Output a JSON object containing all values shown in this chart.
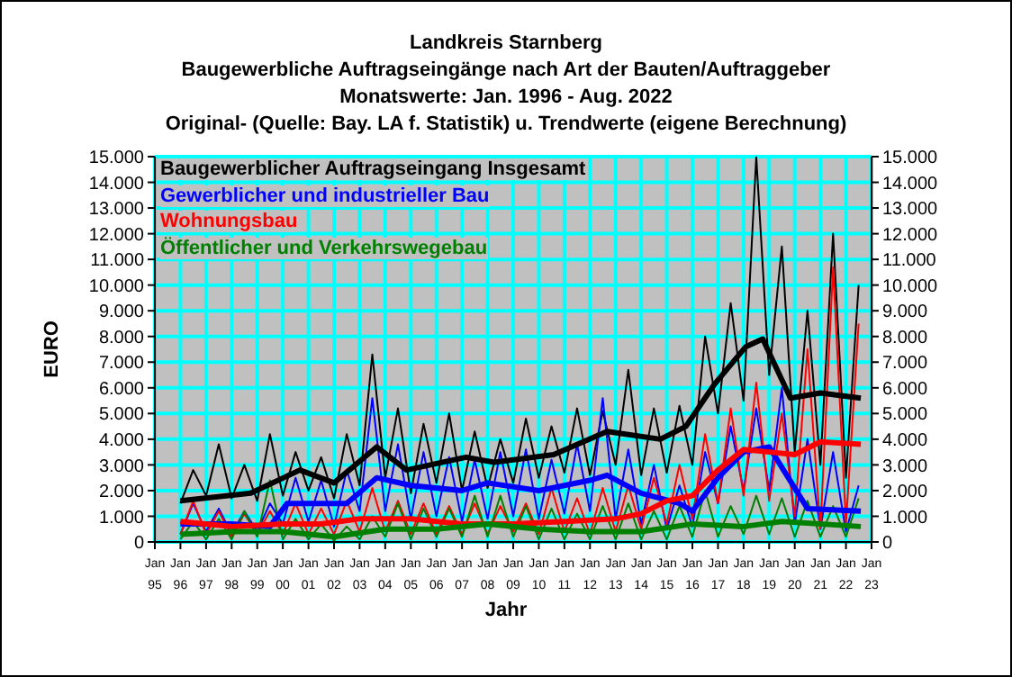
{
  "chart_data": {
    "type": "line",
    "title": "Landkreis Starnberg",
    "subtitle": "Baugewerbliche Auftragseingänge nach Art der Bauten/Auftraggeber\nMonatswerte: Jan. 1996 - Aug. 2022\nOriginal- (Quelle: Bay. LA f. Statistik) u. Trendwerte (eigene Berechnung)",
    "xlabel": "Jahr",
    "ylabel": "EURO",
    "legend": "top left",
    "grid": true,
    "marker": "none",
    "x": [
      "1996-01",
      "1996-07",
      "1997-01",
      "1997-07",
      "1998-01",
      "1998-07",
      "1999-01",
      "1999-07",
      "2000-01",
      "2000-07",
      "2001-01",
      "2001-07",
      "2002-01",
      "2002-07",
      "2003-01",
      "2003-07",
      "2004-01",
      "2004-07",
      "2005-01",
      "2005-07",
      "2006-01",
      "2006-07",
      "2007-01",
      "2007-07",
      "2008-01",
      "2008-07",
      "2009-01",
      "2009-07",
      "2010-01",
      "2010-07",
      "2011-01",
      "2011-07",
      "2012-01",
      "2012-07",
      "2013-01",
      "2013-07",
      "2014-01",
      "2014-07",
      "2015-01",
      "2015-07",
      "2016-01",
      "2016-07",
      "2017-01",
      "2017-07",
      "2018-01",
      "2018-07",
      "2019-01",
      "2019-07",
      "2020-01",
      "2020-07",
      "2021-01",
      "2021-07",
      "2022-01",
      "2022-07"
    ],
    "series": [
      {
        "name": "Baugewerblicher Auftragseingang Insgesamt",
        "color": "#000000",
        "values": [
          1500,
          2800,
          1800,
          3800,
          1700,
          3000,
          1600,
          4200,
          1800,
          3500,
          2000,
          3300,
          1700,
          4200,
          2200,
          7300,
          2500,
          5200,
          1900,
          4600,
          2300,
          5000,
          2000,
          4300,
          2100,
          4000,
          2300,
          4800,
          2500,
          4500,
          2700,
          5200,
          2600,
          5100,
          3000,
          6700,
          2600,
          5200,
          2700,
          5300,
          3000,
          8000,
          5000,
          9300,
          5500,
          15000,
          6500,
          11500,
          3500,
          9000,
          3000,
          12000,
          2500,
          10000
        ]
      },
      {
        "name": "Gewerblicher und industrieller Bau",
        "color": "#0000ff",
        "values": [
          300,
          1500,
          400,
          1300,
          300,
          1200,
          400,
          1500,
          700,
          2500,
          800,
          2400,
          600,
          2800,
          1200,
          5600,
          1200,
          3800,
          900,
          3500,
          1000,
          3300,
          800,
          3200,
          900,
          3500,
          1000,
          3600,
          900,
          3200,
          1100,
          3800,
          1200,
          5600,
          900,
          3600,
          700,
          3000,
          500,
          2200,
          600,
          3500,
          1500,
          4500,
          2000,
          5200,
          2000,
          6000,
          700,
          4000,
          500,
          3500,
          400,
          2200
        ]
      },
      {
        "name": "Wohnungsbau",
        "color": "#ff0000",
        "values": [
          300,
          1600,
          300,
          1200,
          200,
          1100,
          300,
          1200,
          300,
          1500,
          300,
          1300,
          300,
          1600,
          400,
          2100,
          400,
          1600,
          300,
          1500,
          300,
          1400,
          300,
          1500,
          300,
          1400,
          400,
          1500,
          300,
          2100,
          400,
          1700,
          300,
          2100,
          400,
          2200,
          500,
          2500,
          700,
          3000,
          900,
          4200,
          1500,
          5200,
          1800,
          6200,
          1600,
          5000,
          1000,
          7500,
          500,
          10700,
          700,
          8500
        ]
      },
      {
        "name": "Öffentlicher und Verkehrswegebau",
        "color": "#008000",
        "values": [
          100,
          800,
          100,
          900,
          100,
          1200,
          200,
          2400,
          100,
          900,
          100,
          700,
          50,
          600,
          100,
          1000,
          200,
          1500,
          100,
          1300,
          200,
          1300,
          200,
          1800,
          200,
          1800,
          200,
          1400,
          100,
          1300,
          100,
          1100,
          100,
          1400,
          100,
          1500,
          100,
          1200,
          100,
          1400,
          200,
          2000,
          200,
          1400,
          300,
          1800,
          300,
          1700,
          200,
          1600,
          200,
          1400,
          200,
          1700
        ]
      },
      {
        "color": "#000000",
        "x": [
          "1996-01",
          "1998-10",
          "2000-09",
          "2002-01",
          "2003-09",
          "2004-11",
          "2007-03",
          "2008-04",
          "2010-08",
          "2012-09",
          "2014-10",
          "2015-10",
          "2016-11",
          "2018-02",
          "2018-10",
          "2019-11",
          "2021-01",
          "2022-08"
        ],
        "values": [
          1600,
          1900,
          2800,
          2300,
          3700,
          2800,
          3300,
          3100,
          3400,
          4300,
          4000,
          4500,
          6100,
          7600,
          7900,
          5600,
          5800,
          5600
        ]
      },
      {
        "color": "#0000ff",
        "x": [
          "1996-01",
          "1998-01",
          "1999-07",
          "2000-03",
          "2002-07",
          "2003-09",
          "2005-01",
          "2007-01",
          "2008-01",
          "2010-01",
          "2012-01",
          "2012-09",
          "2014-01",
          "2015-07",
          "2016-01",
          "2017-01",
          "2018-01",
          "2019-01",
          "2019-10",
          "2020-07",
          "2022-08"
        ],
        "values": [
          700,
          700,
          600,
          1500,
          1500,
          2500,
          2200,
          2000,
          2300,
          2000,
          2400,
          2600,
          1900,
          1500,
          1200,
          2500,
          3500,
          3700,
          2500,
          1300,
          1200
        ]
      },
      {
        "color": "#ff0000",
        "x": [
          "1996-01",
          "1998-01",
          "2000-01",
          "2001-07",
          "2003-01",
          "2005-01",
          "2007-01",
          "2009-01",
          "2011-01",
          "2013-01",
          "2014-01",
          "2015-01",
          "2016-01",
          "2017-01",
          "2018-01",
          "2019-01",
          "2020-01",
          "2021-01",
          "2022-08"
        ],
        "values": [
          800,
          600,
          700,
          700,
          900,
          900,
          700,
          700,
          800,
          900,
          1100,
          1600,
          1800,
          2800,
          3600,
          3500,
          3400,
          3900,
          3800
        ]
      },
      {
        "color": "#008000",
        "x": [
          "1996-01",
          "1998-01",
          "2000-01",
          "2002-01",
          "2004-01",
          "2006-01",
          "2008-01",
          "2010-01",
          "2012-01",
          "2014-01",
          "2016-01",
          "2018-01",
          "2019-07",
          "2022-08"
        ],
        "values": [
          300,
          400,
          400,
          200,
          500,
          500,
          700,
          500,
          400,
          400,
          700,
          600,
          800,
          600
        ]
      }
    ],
    "xlim": [
      "1995-01",
      "2023-01"
    ],
    "xticks": [
      {
        "value": "1995-01",
        "label": "Jan 95"
      },
      {
        "value": "1996-01",
        "label": "Jan 96"
      },
      {
        "value": "1997-01",
        "label": "Jan 97"
      },
      {
        "value": "1998-01",
        "label": "Jan 98"
      },
      {
        "value": "1999-01",
        "label": "Jan 99"
      },
      {
        "value": "2000-01",
        "label": "Jan 00"
      },
      {
        "value": "2001-01",
        "label": "Jan 01"
      },
      {
        "value": "2002-01",
        "label": "Jan 02"
      },
      {
        "value": "2003-01",
        "label": "Jan 03"
      },
      {
        "value": "2004-01",
        "label": "Jan 04"
      },
      {
        "value": "2005-01",
        "label": "Jan 05"
      },
      {
        "value": "2006-01",
        "label": "Jan 06"
      },
      {
        "value": "2007-01",
        "label": "Jan 07"
      },
      {
        "value": "2008-01",
        "label": "Jan 08"
      },
      {
        "value": "2009-01",
        "label": "Jan 09"
      },
      {
        "value": "2010-01",
        "label": "Jan 10"
      },
      {
        "value": "2011-01",
        "label": "Jan 11"
      },
      {
        "value": "2012-01",
        "label": "Jan 12"
      },
      {
        "value": "2013-01",
        "label": "Jan 13"
      },
      {
        "value": "2014-01",
        "label": "Jan 14"
      },
      {
        "value": "2015-01",
        "label": "Jan 15"
      },
      {
        "value": "2016-01",
        "label": "Jan 16"
      },
      {
        "value": "2017-01",
        "label": "Jan 17"
      },
      {
        "value": "2018-01",
        "label": "Jan 18"
      },
      {
        "value": "2019-01",
        "label": "Jan 19"
      },
      {
        "value": "2020-01",
        "label": "Jan 20"
      },
      {
        "value": "2021-01",
        "label": "Jan 21"
      },
      {
        "value": "2022-01",
        "label": "Jan 22"
      },
      {
        "value": "2023-01",
        "label": "Jan 23"
      }
    ],
    "ylim": [
      0,
      15000
    ],
    "yticks": [
      0,
      {
        "value": 1000,
        "label": "1.000"
      },
      {
        "value": 2000,
        "label": "2.000"
      },
      {
        "value": 3000,
        "label": "3.000"
      },
      {
        "value": 4000,
        "label": "4.000"
      },
      {
        "value": 5000,
        "label": "5.000"
      },
      {
        "value": 6000,
        "label": "6.000"
      },
      {
        "value": 7000,
        "label": "7.000"
      },
      {
        "value": 8000,
        "label": "8.000"
      },
      {
        "value": 9000,
        "label": "9.000"
      },
      {
        "value": 10000,
        "label": "10.000"
      },
      {
        "value": 11000,
        "label": "11.000"
      },
      {
        "value": 12000,
        "label": "12.000"
      },
      {
        "value": 13000,
        "label": "13.000"
      },
      {
        "value": 14000,
        "label": "14.000"
      },
      {
        "value": 15000,
        "label": "15.000"
      }
    ],
    "y2lim": [
      0,
      15000
    ],
    "y2ticks": [
      0,
      {
        "value": 1000,
        "label": "1.000"
      },
      {
        "value": 2000,
        "label": "2.000"
      },
      {
        "value": 3000,
        "label": "3.000"
      },
      {
        "value": 4000,
        "label": "4.000"
      },
      {
        "value": 5000,
        "label": "5.000"
      },
      {
        "value": 6000,
        "label": "6.000"
      },
      {
        "value": 7000,
        "label": "7.000"
      },
      {
        "value": 8000,
        "label": "8.000"
      },
      {
        "value": 9000,
        "label": "9.000"
      },
      {
        "value": 10000,
        "label": "10.000"
      },
      {
        "value": 11000,
        "label": "11.000"
      },
      {
        "value": 12000,
        "label": "12.000"
      },
      {
        "value": 13000,
        "label": "13.000"
      },
      {
        "value": 14000,
        "label": "14.000"
      },
      {
        "value": 15000,
        "label": "15.000"
      }
    ]
  }
}
